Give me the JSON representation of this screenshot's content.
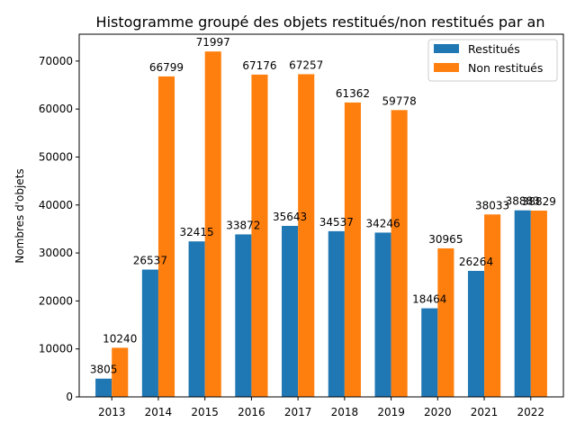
{
  "chart_data": {
    "type": "bar",
    "title": "Histogramme groupé des objets restitués/non restitués par an",
    "xlabel": "",
    "ylabel": "Nombres d'objets",
    "categories": [
      "2013",
      "2014",
      "2015",
      "2016",
      "2017",
      "2018",
      "2019",
      "2020",
      "2021",
      "2022"
    ],
    "series": [
      {
        "name": "Restitués",
        "color": "#1f77b4",
        "values": [
          3805,
          26537,
          32415,
          33872,
          35643,
          34537,
          34246,
          18464,
          26264,
          38883
        ]
      },
      {
        "name": "Non restitués",
        "color": "#ff7f0e",
        "values": [
          10240,
          66799,
          71997,
          67176,
          67257,
          61362,
          59778,
          30965,
          38033,
          38829
        ]
      }
    ],
    "ylim": [
      0,
      75599
    ],
    "yticks": [
      0,
      10000,
      20000,
      30000,
      40000,
      50000,
      60000,
      70000
    ],
    "grid": false,
    "legend_position": "top-right",
    "data_labels": true
  }
}
